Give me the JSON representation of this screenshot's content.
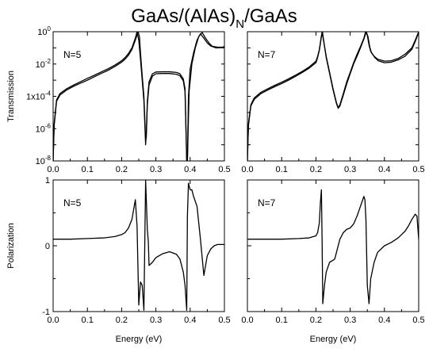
{
  "chart_data": {
    "title_parts": {
      "main": "GaAs/(AlAs)",
      "subscript": "N",
      "suffix": "/GaAs"
    },
    "layout": "2x2 panels, shared x axis per column",
    "panels": [
      {
        "id": "tr5",
        "type": "line",
        "panel_label": "N=5",
        "ylabel": "Transmission",
        "xlabel": "",
        "yscale": "log",
        "ylim": [
          1e-08,
          1
        ],
        "xlim": [
          0.0,
          0.5
        ],
        "x_ticks": [
          "0.0",
          "0.1",
          "0.2",
          "0.3",
          "0.4",
          "0.5"
        ],
        "y_ticks": [
          {
            "value": 1,
            "base": "10",
            "exp": "0"
          },
          {
            "value": 0.01,
            "base": "10",
            "exp": "-2"
          },
          {
            "value": 0.0001,
            "base": "1x10",
            "exp": "-4"
          },
          {
            "value": 1e-06,
            "base": "10",
            "exp": "-6"
          },
          {
            "value": 1e-08,
            "base": "10",
            "exp": "-8"
          }
        ],
        "series": [
          {
            "x": [
              0.0,
              0.003,
              0.01,
              0.02,
              0.04,
              0.06,
              0.08,
              0.1,
              0.12,
              0.14,
              0.16,
              0.18,
              0.2,
              0.21,
              0.22,
              0.23,
              0.24,
              0.245,
              0.25,
              0.255,
              0.26,
              0.265,
              0.27,
              0.272,
              0.275,
              0.28,
              0.29,
              0.3,
              0.32,
              0.34,
              0.36,
              0.37,
              0.38,
              0.385,
              0.39,
              0.392,
              0.395,
              0.4,
              0.41,
              0.42,
              0.43,
              0.44,
              0.45,
              0.46,
              0.47,
              0.48,
              0.49,
              0.5
            ],
            "y": [
              1e-08,
              2e-06,
              6e-05,
              0.00015,
              0.0003,
              0.0005,
              0.0008,
              0.0013,
              0.002,
              0.0032,
              0.005,
              0.0085,
              0.016,
              0.025,
              0.045,
              0.1,
              0.4,
              1,
              0.3,
              0.02,
              0.001,
              5e-05,
              1e-07,
              5e-07,
              5e-05,
              0.0008,
              0.0025,
              0.0032,
              0.0033,
              0.0033,
              0.003,
              0.0025,
              0.0012,
              0.0003,
              1e-08,
              1e-08,
              0.0001,
              0.005,
              0.05,
              0.3,
              0.75,
              0.4,
              0.2,
              0.13,
              0.12,
              0.11,
              0.11,
              0.11
            ]
          },
          {
            "x": [
              0.0,
              0.003,
              0.01,
              0.02,
              0.04,
              0.06,
              0.08,
              0.1,
              0.12,
              0.14,
              0.16,
              0.18,
              0.2,
              0.21,
              0.22,
              0.23,
              0.24,
              0.248,
              0.252,
              0.255,
              0.26,
              0.265,
              0.27,
              0.272,
              0.275,
              0.28,
              0.29,
              0.3,
              0.32,
              0.34,
              0.36,
              0.37,
              0.38,
              0.385,
              0.39,
              0.392,
              0.397,
              0.405,
              0.415,
              0.425,
              0.435,
              0.445,
              0.455,
              0.465,
              0.475,
              0.485,
              0.495,
              0.5
            ],
            "y": [
              1e-08,
              1.5e-06,
              5e-05,
              0.00012,
              0.00025,
              0.00042,
              0.00065,
              0.001,
              0.0016,
              0.0026,
              0.004,
              0.007,
              0.013,
              0.02,
              0.035,
              0.08,
              0.3,
              1,
              0.5,
              0.05,
              0.002,
              0.0001,
              2e-07,
              3e-07,
              3e-05,
              0.0005,
              0.0018,
              0.0025,
              0.0026,
              0.0026,
              0.0023,
              0.0019,
              0.0009,
              0.0002,
              1e-08,
              1e-08,
              0.0002,
              0.01,
              0.1,
              0.5,
              0.9,
              0.4,
              0.2,
              0.12,
              0.1,
              0.1,
              0.11,
              0.12
            ]
          }
        ]
      },
      {
        "id": "tr7",
        "type": "line",
        "panel_label": "N=7",
        "ylabel": "",
        "xlabel": "",
        "yscale": "log",
        "ylim": [
          1e-08,
          1
        ],
        "xlim": [
          0.0,
          0.5
        ],
        "x_ticks": [
          "0.0",
          "0.1",
          "0.2",
          "0.3",
          "0.4",
          "0.5"
        ],
        "series": [
          {
            "x": [
              0.0,
              0.003,
              0.01,
              0.02,
              0.04,
              0.06,
              0.08,
              0.1,
              0.12,
              0.14,
              0.16,
              0.18,
              0.2,
              0.205,
              0.21,
              0.215,
              0.218,
              0.222,
              0.23,
              0.24,
              0.25,
              0.26,
              0.265,
              0.27,
              0.28,
              0.29,
              0.3,
              0.31,
              0.32,
              0.33,
              0.34,
              0.345,
              0.35,
              0.355,
              0.36,
              0.37,
              0.38,
              0.4,
              0.42,
              0.44,
              0.46,
              0.48,
              0.49,
              0.5
            ],
            "y": [
              1e-08,
              2e-06,
              3e-05,
              8e-05,
              0.00018,
              0.0003,
              0.00048,
              0.00075,
              0.0012,
              0.002,
              0.0035,
              0.0065,
              0.015,
              0.03,
              0.08,
              0.4,
              1,
              0.3,
              0.03,
              0.003,
              0.0003,
              4e-05,
              2e-05,
              3e-05,
              0.00015,
              0.0008,
              0.003,
              0.012,
              0.04,
              0.12,
              0.4,
              1,
              0.6,
              0.15,
              0.06,
              0.03,
              0.02,
              0.015,
              0.016,
              0.022,
              0.04,
              0.1,
              0.3,
              1
            ]
          },
          {
            "x": [
              0.0,
              0.003,
              0.01,
              0.02,
              0.04,
              0.06,
              0.08,
              0.1,
              0.12,
              0.14,
              0.16,
              0.18,
              0.2,
              0.205,
              0.21,
              0.215,
              0.219,
              0.223,
              0.23,
              0.24,
              0.25,
              0.26,
              0.265,
              0.27,
              0.28,
              0.29,
              0.3,
              0.31,
              0.32,
              0.33,
              0.34,
              0.347,
              0.352,
              0.357,
              0.362,
              0.372,
              0.382,
              0.4,
              0.42,
              0.44,
              0.46,
              0.48,
              0.49,
              0.5
            ],
            "y": [
              1e-08,
              1.5e-06,
              2.5e-05,
              6.5e-05,
              0.00015,
              0.00025,
              0.0004,
              0.00062,
              0.001,
              0.0017,
              0.003,
              0.0055,
              0.012,
              0.025,
              0.07,
              0.35,
              1,
              0.25,
              0.025,
              0.0025,
              0.00025,
              3.5e-05,
              1.8e-05,
              2.5e-05,
              0.00012,
              0.0006,
              0.0025,
              0.01,
              0.03,
              0.1,
              0.35,
              1,
              0.5,
              0.12,
              0.05,
              0.025,
              0.016,
              0.012,
              0.013,
              0.018,
              0.03,
              0.08,
              0.25,
              0.9
            ]
          }
        ]
      },
      {
        "id": "pol5",
        "type": "line",
        "panel_label": "N=5",
        "ylabel": "Polarization",
        "xlabel": "Energy (eV)",
        "yscale": "linear",
        "ylim": [
          -1,
          1
        ],
        "xlim": [
          0.0,
          0.5
        ],
        "x_ticks": [
          "0.0",
          "0.1",
          "0.2",
          "0.3",
          "0.4",
          "0.5"
        ],
        "y_ticks": [
          {
            "value": 1,
            "label": "1"
          },
          {
            "value": 0,
            "label": "0"
          },
          {
            "value": -1,
            "label": "-1"
          }
        ],
        "series": [
          {
            "x": [
              0.0,
              0.05,
              0.1,
              0.15,
              0.18,
              0.2,
              0.21,
              0.22,
              0.23,
              0.24,
              0.245,
              0.25,
              0.255,
              0.26,
              0.265,
              0.27,
              0.275,
              0.278,
              0.28,
              0.29,
              0.3,
              0.32,
              0.34,
              0.36,
              0.37,
              0.38,
              0.385,
              0.39,
              0.392,
              0.395,
              0.4,
              0.405,
              0.41,
              0.42,
              0.43,
              0.44,
              0.45,
              0.46,
              0.47,
              0.48,
              0.49,
              0.5
            ],
            "y": [
              0.1,
              0.1,
              0.11,
              0.12,
              0.14,
              0.17,
              0.2,
              0.27,
              0.4,
              0.7,
              0.3,
              -0.9,
              -0.55,
              -0.6,
              -0.98,
              1.0,
              0.25,
              0.05,
              -0.3,
              -0.25,
              -0.18,
              -0.12,
              -0.09,
              -0.13,
              -0.2,
              -0.4,
              -0.6,
              -0.98,
              0.45,
              0.95,
              0.85,
              0.85,
              0.75,
              0.6,
              0.1,
              -0.45,
              -0.15,
              -0.05,
              0.0,
              0.02,
              0.02,
              0.02
            ]
          }
        ]
      },
      {
        "id": "pol7",
        "type": "line",
        "panel_label": "N=7",
        "ylabel": "",
        "xlabel": "Energy (eV)",
        "yscale": "linear",
        "ylim": [
          -1,
          1
        ],
        "xlim": [
          0.0,
          0.5
        ],
        "x_ticks": [
          "0.0",
          "0.1",
          "0.2",
          "0.3",
          "0.4",
          "0.5"
        ],
        "series": [
          {
            "x": [
              0.0,
              0.05,
              0.1,
              0.15,
              0.18,
              0.2,
              0.205,
              0.21,
              0.213,
              0.216,
              0.218,
              0.22,
              0.225,
              0.23,
              0.24,
              0.25,
              0.255,
              0.26,
              0.27,
              0.28,
              0.29,
              0.3,
              0.31,
              0.32,
              0.33,
              0.34,
              0.343,
              0.346,
              0.35,
              0.355,
              0.36,
              0.37,
              0.38,
              0.4,
              0.42,
              0.44,
              0.46,
              0.47,
              0.48,
              0.49,
              0.495,
              0.5
            ],
            "y": [
              0.1,
              0.1,
              0.1,
              0.11,
              0.12,
              0.15,
              0.2,
              0.35,
              0.65,
              0.85,
              0.1,
              -0.88,
              -0.6,
              -0.4,
              -0.25,
              -0.22,
              -0.2,
              -0.1,
              0.1,
              0.2,
              0.25,
              0.27,
              0.33,
              0.45,
              0.6,
              0.75,
              0.7,
              0.4,
              -0.6,
              -0.88,
              -0.5,
              -0.25,
              -0.1,
              0.0,
              0.05,
              0.12,
              0.22,
              0.3,
              0.4,
              0.48,
              0.45,
              0.1
            ]
          }
        ]
      }
    ]
  }
}
